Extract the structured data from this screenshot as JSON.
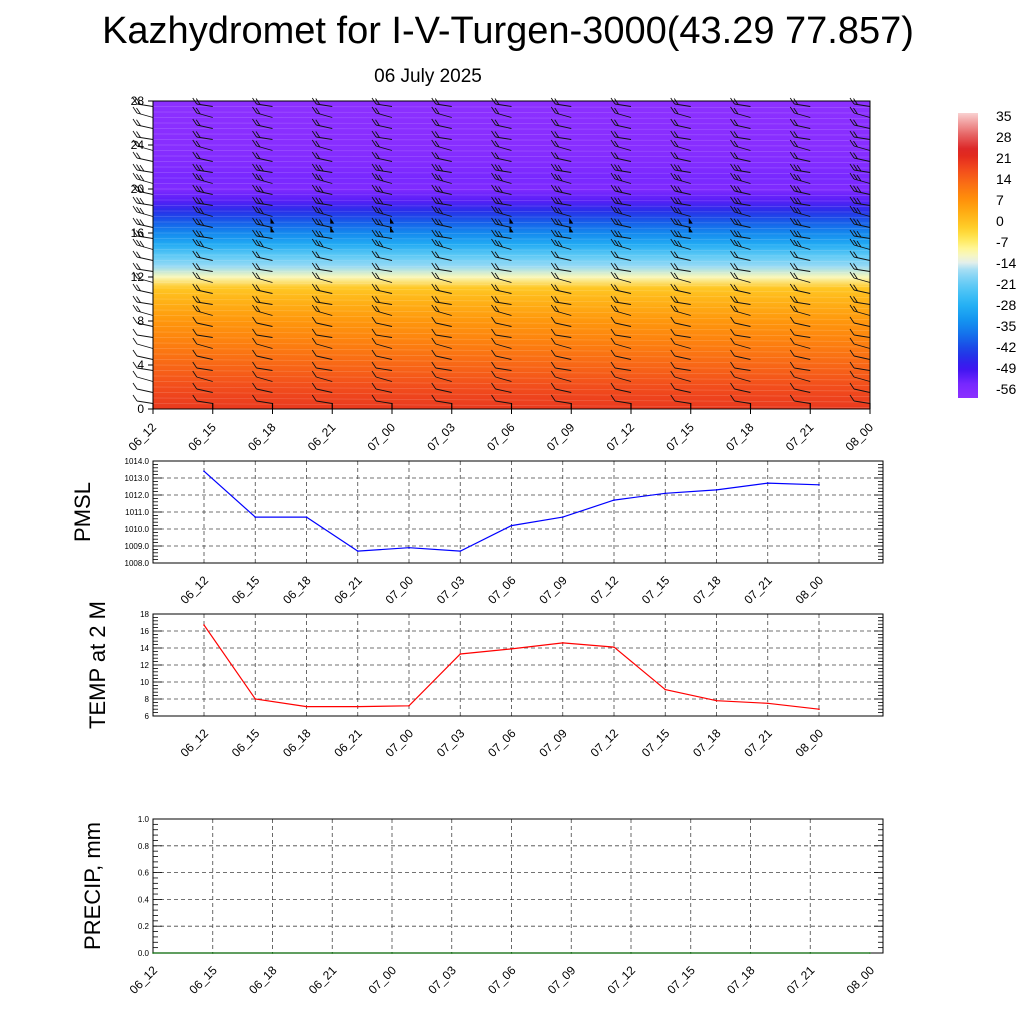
{
  "header": {
    "title": "Kazhydromet for I-V-Turgen-3000(43.29 77.857)",
    "date": "06 July 2025"
  },
  "chart_data": [
    {
      "type": "heatmap",
      "name": "upper-air-temperature",
      "x_ticks": [
        "06_12",
        "06_15",
        "06_18",
        "06_21",
        "07_00",
        "07_03",
        "07_06",
        "07_09",
        "07_12",
        "07_15",
        "07_18",
        "07_21",
        "08_00"
      ],
      "y_ticks": [
        0,
        4,
        8,
        12,
        16,
        20,
        24,
        28
      ],
      "ylim": [
        0,
        28
      ],
      "colorbar": {
        "labels": [
          "35",
          "28",
          "21",
          "14",
          "7",
          "0",
          "-7",
          "-14",
          "-21",
          "-28",
          "-35",
          "-42",
          "-49",
          "-56"
        ],
        "range": [
          -63,
          42
        ]
      },
      "temperature_profile": {
        "heights": [
          0,
          2,
          4,
          6,
          8,
          10,
          11,
          12,
          13,
          14,
          15,
          16,
          17,
          18,
          19,
          20,
          21,
          22,
          24,
          28
        ],
        "values": [
          24,
          21,
          17,
          13,
          9,
          4,
          1,
          -10,
          -17,
          -22,
          -30,
          -36,
          -42,
          -48,
          -55,
          -60,
          -58,
          -60,
          -62,
          -63
        ]
      },
      "wind_barbs": true
    },
    {
      "type": "line",
      "ylabel": "PMSL",
      "categories": [
        "06_12",
        "06_15",
        "06_18",
        "06_21",
        "07_00",
        "07_03",
        "07_06",
        "07_09",
        "07_12",
        "07_15",
        "07_18",
        "07_21",
        "08_00"
      ],
      "y_ticks": [
        "1008.0",
        "1009.0",
        "1010.0",
        "1011.0",
        "1012.0",
        "1013.0",
        "1014.0"
      ],
      "ylim": [
        1008,
        1014
      ],
      "values": [
        1013.4,
        1010.7,
        1010.7,
        1008.7,
        1008.9,
        1008.7,
        1010.2,
        1010.7,
        1011.7,
        1012.1,
        1012.3,
        1012.7,
        1012.6
      ],
      "color": "#0000ff"
    },
    {
      "type": "line",
      "ylabel": "TEMP at 2 M",
      "categories": [
        "06_12",
        "06_15",
        "06_18",
        "06_21",
        "07_00",
        "07_03",
        "07_06",
        "07_09",
        "07_12",
        "07_15",
        "07_18",
        "07_21",
        "08_00"
      ],
      "y_ticks": [
        "6",
        "8",
        "10",
        "12",
        "14",
        "16",
        "18"
      ],
      "ylim": [
        6,
        18
      ],
      "values": [
        16.7,
        8.0,
        7.1,
        7.1,
        7.2,
        13.3,
        13.9,
        14.6,
        14.1,
        9.1,
        7.8,
        7.5,
        6.8
      ],
      "color": "#ff0000"
    },
    {
      "type": "line",
      "ylabel": "PRECIP, mm",
      "categories": [
        "06_12",
        "06_15",
        "06_18",
        "06_21",
        "07_00",
        "07_03",
        "07_06",
        "07_09",
        "07_12",
        "07_15",
        "07_18",
        "07_21",
        "08_00"
      ],
      "y_ticks": [
        "0.0",
        "0.2",
        "0.4",
        "0.6",
        "0.8",
        "1.0"
      ],
      "ylim": [
        0,
        1
      ],
      "values": [
        0,
        0,
        0,
        0,
        0,
        0,
        0,
        0,
        0,
        0,
        0,
        0,
        0
      ],
      "color": "#006400"
    }
  ]
}
